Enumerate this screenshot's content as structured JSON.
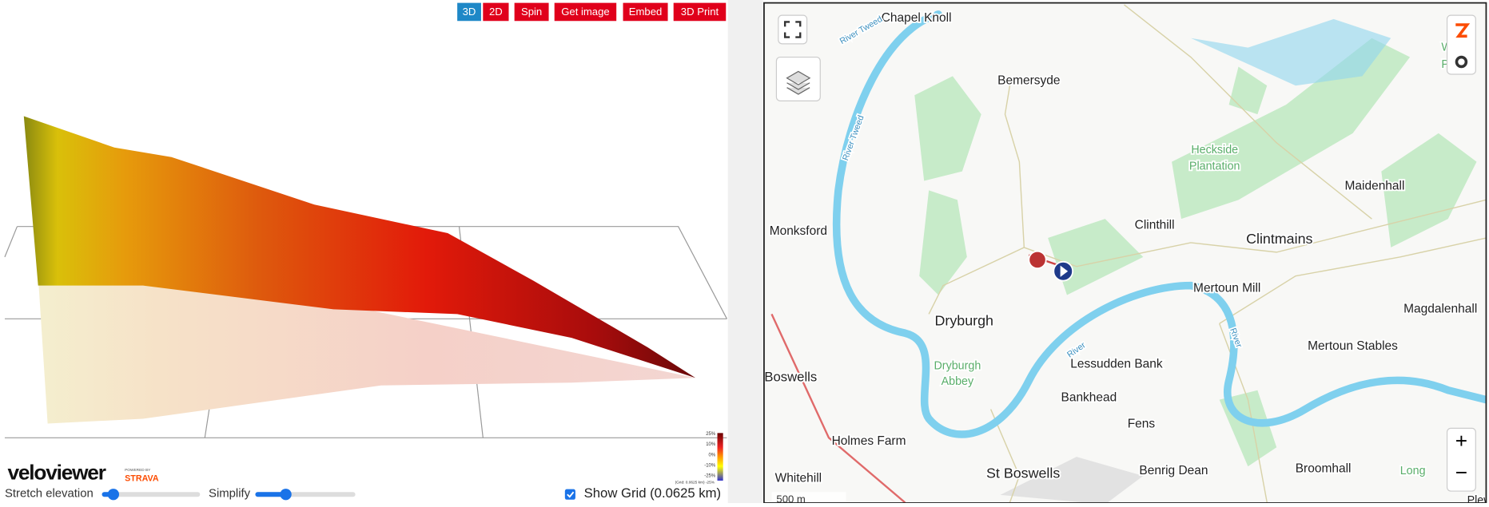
{
  "toolbar": {
    "buttons": [
      "3D",
      "2D",
      "Spin",
      "Get image",
      "Embed",
      "3D Print"
    ]
  },
  "legend": {
    "labels": [
      "25%",
      "10%",
      "0%",
      "-10%",
      "-25%"
    ],
    "note": "(Grid: 0.0625 km) -25%"
  },
  "logo": {
    "name": "veloviewer",
    "powered": "POWERED BY",
    "strava": "STRAVA"
  },
  "controls": {
    "stretch": "Stretch elevation",
    "simplify": "Simplify",
    "show_grid": "Show Grid (0.0625 km)"
  },
  "map": {
    "labels": [
      "Chapel Knoll",
      "Bemersyde",
      "Monksford",
      "Clinthill",
      "Clintmains",
      "Heckside",
      "Plantation",
      "Maidenhall",
      "Mertoun Mill",
      "Magdalenhall",
      "Dryburgh",
      "Dryburgh",
      "Abbey",
      "Lessudden Bank",
      "Mertoun Stables",
      "Boswells",
      "Bankhead",
      "Fens",
      "Holmes Farm",
      "St Boswells",
      "Benrig Dean",
      "Broomhall",
      "Whitehill",
      "Long",
      "Whinn",
      "Planta",
      "River Tweed",
      "River Tweed",
      "River",
      "River",
      "Plew"
    ],
    "scale": "500 m",
    "zoom_in": "+",
    "zoom_out": "−"
  }
}
